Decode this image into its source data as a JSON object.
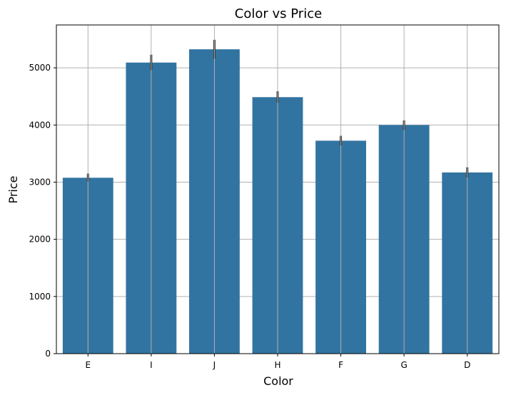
{
  "chart_data": {
    "type": "bar",
    "title": "Color vs Price",
    "xlabel": "Color",
    "ylabel": "Price",
    "categories": [
      "E",
      "I",
      "J",
      "H",
      "F",
      "G",
      "D"
    ],
    "values": [
      3077,
      5092,
      5324,
      4487,
      3725,
      3999,
      3170
    ],
    "error_low": [
      3010,
      4960,
      5160,
      4390,
      3640,
      3910,
      3080
    ],
    "error_high": [
      3150,
      5230,
      5490,
      4590,
      3810,
      4080,
      3260
    ],
    "yticks": [
      0,
      1000,
      2000,
      3000,
      4000,
      5000
    ],
    "ylim": [
      0,
      5750
    ],
    "grid": true,
    "bar_color": "#3274a1",
    "error_color": "#333333",
    "grid_color": "#b0b0b0"
  }
}
